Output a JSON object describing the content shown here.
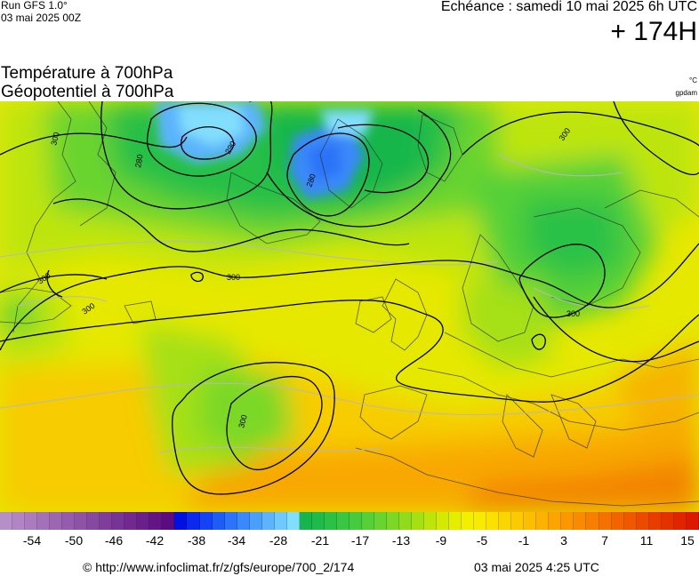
{
  "header": {
    "run_label": "Run GFS 1.0°",
    "run_date": "03 mai 2025 00Z",
    "echeance": "Echéance : samedi 10 mai 2025 6h UTC",
    "lead_time": "+ 174H"
  },
  "titles": {
    "line1": "Température à 700hPa",
    "line2": "Géopotentiel à 700hPa",
    "unit_temperature": "°C",
    "unit_geopotential": "gpdam"
  },
  "map": {
    "contour_labels": [
      "300",
      "290",
      "280",
      "280",
      "300",
      "300",
      "300",
      "300",
      "300",
      "300"
    ],
    "contour_color": "#000000",
    "isotherm_color": "#b8b8b8"
  },
  "scale": {
    "colors": [
      "#b78fc8",
      "#b185c3",
      "#aa7bbd",
      "#a371b8",
      "#9c66b2",
      "#955cad",
      "#8e52a7",
      "#8748a2",
      "#7f3e9c",
      "#783397",
      "#712991",
      "#6a1f8c",
      "#631586",
      "#5c0b81",
      "#0010e0",
      "#0a28ee",
      "#1443f3",
      "#1e5cf6",
      "#2b73f8",
      "#3a89fa",
      "#4a9ffb",
      "#5bb4fc",
      "#6ecafd",
      "#82defd",
      "#16b64c",
      "#1fbb4a",
      "#2bc147",
      "#38c643",
      "#45cb3e",
      "#55d037",
      "#67d42f",
      "#7bd826",
      "#90dc1c",
      "#a6e013",
      "#bde50a",
      "#d4ea02",
      "#e6ee00",
      "#f2f000",
      "#f8ea00",
      "#fbe000",
      "#fcd500",
      "#fdc900",
      "#fdbd00",
      "#fdb100",
      "#fca400",
      "#fb9800",
      "#f98b00",
      "#f77e00",
      "#f57100",
      "#f26400",
      "#ef5700",
      "#ec4a00",
      "#e93d00",
      "#e53000",
      "#e12400",
      "#dc1800"
    ],
    "tick_labels": [
      "-54",
      "-50",
      "-46",
      "-42",
      "-38",
      "-34",
      "-28",
      "-21",
      "-17",
      "-13",
      "-9",
      "-5",
      "-1",
      "3",
      "7",
      "11",
      "15"
    ]
  },
  "footer": {
    "copyright": "© http://www.infoclimat.fr/z/gfs/europe/700_2/174",
    "generated": "03 mai 2025  4:25 UTC"
  }
}
